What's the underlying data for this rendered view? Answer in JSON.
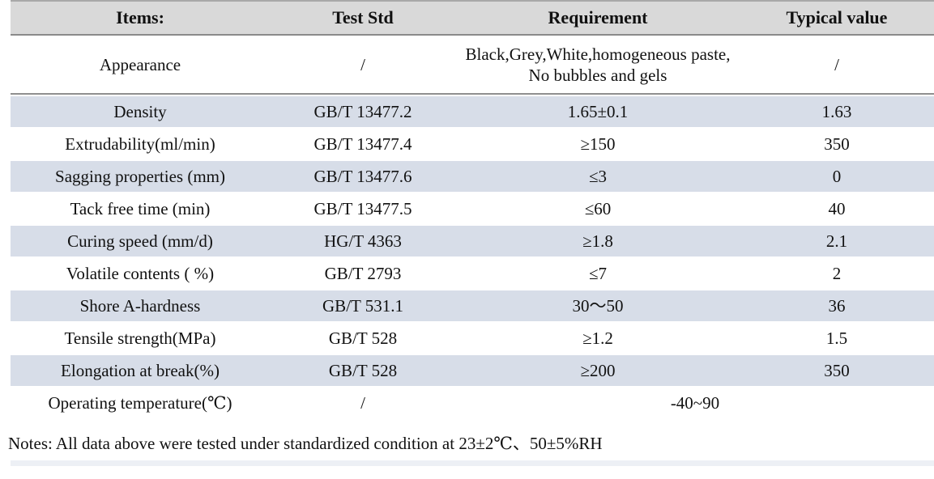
{
  "table": {
    "headers": [
      "Items:",
      "Test Std",
      "Requirement",
      "Typical value"
    ],
    "rows": [
      {
        "item": "Appearance",
        "std": "/",
        "req": "Black,Grey,White,homogeneous paste, No bubbles and gels",
        "typ": "/",
        "shaded": false,
        "tall": true
      },
      {
        "item": "Density",
        "std": "GB/T 13477.2",
        "req": "1.65±0.1",
        "typ": "1.63",
        "shaded": true
      },
      {
        "item": "Extrudability(ml/min)",
        "std": "GB/T 13477.4",
        "req": "≥150",
        "typ": "350",
        "shaded": false
      },
      {
        "item": "Sagging properties (mm)",
        "std": "GB/T 13477.6",
        "req": "≤3",
        "typ": "0",
        "shaded": true
      },
      {
        "item": "Tack free time (min)",
        "std": "GB/T 13477.5",
        "req": "≤60",
        "typ": "40",
        "shaded": false
      },
      {
        "item": "Curing speed (mm/d)",
        "std": "HG/T 4363",
        "req": "≥1.8",
        "typ": "2.1",
        "shaded": true
      },
      {
        "item": "Volatile contents ( %)",
        "std": "GB/T 2793",
        "req": "≤7",
        "typ": "2",
        "shaded": false
      },
      {
        "item": "Shore A-hardness",
        "std": "GB/T 531.1",
        "req": "30～50",
        "typ": "36",
        "shaded": true
      },
      {
        "item": "Tensile strength(MPa)",
        "std": "GB/T 528",
        "req": "≥1.2",
        "typ": "1.5",
        "shaded": false
      },
      {
        "item": "Elongation at break(%)",
        "std": "GB/T 528",
        "req": "≥200",
        "typ": "350",
        "shaded": true
      },
      {
        "item": "Operating temperature(℃)",
        "std": "/",
        "req_span": "-40~90",
        "shaded": false
      }
    ]
  },
  "notes": "Notes: All data above were tested under standardized condition at 23±2℃、50±5%RH",
  "colors": {
    "header_bg": "#d9d9d9",
    "shaded_row_bg": "#d7dde8",
    "text": "#111111"
  }
}
